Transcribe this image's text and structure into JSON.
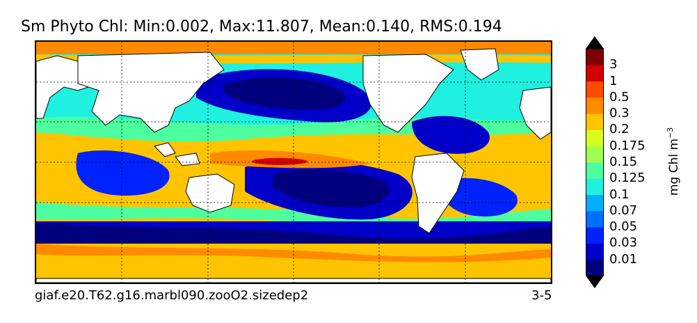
{
  "title": "Sm Phyto Chl: Min:0.002, Max:11.807, Mean:0.140, RMS:0.194",
  "caption_left": "giaf.e20.T62.g16.marbl090.zooO2.sizedep2",
  "caption_right": "3-5",
  "colorbar": {
    "units_main": "mg Chl m",
    "units_exp": "−3",
    "levels": [
      "0.01",
      "0.03",
      "0.05",
      "0.07",
      "0.1",
      "0.125",
      "0.15",
      "0.175",
      "0.2",
      "0.3",
      "0.5",
      "1",
      "3"
    ],
    "colors": [
      "#00007f",
      "#0000c8",
      "#0022ff",
      "#0070ff",
      "#00b0ff",
      "#1ff0e0",
      "#4dff9e",
      "#a0ff50",
      "#d8ff1e",
      "#ffc400",
      "#ff8a00",
      "#ff4a00",
      "#d40000",
      "#800000"
    ],
    "extend_low_color": "#000000",
    "extend_high_color": "#000000"
  },
  "map": {
    "land_color": "#ffffff",
    "gridlines": true,
    "projection": "cylindrical"
  }
}
